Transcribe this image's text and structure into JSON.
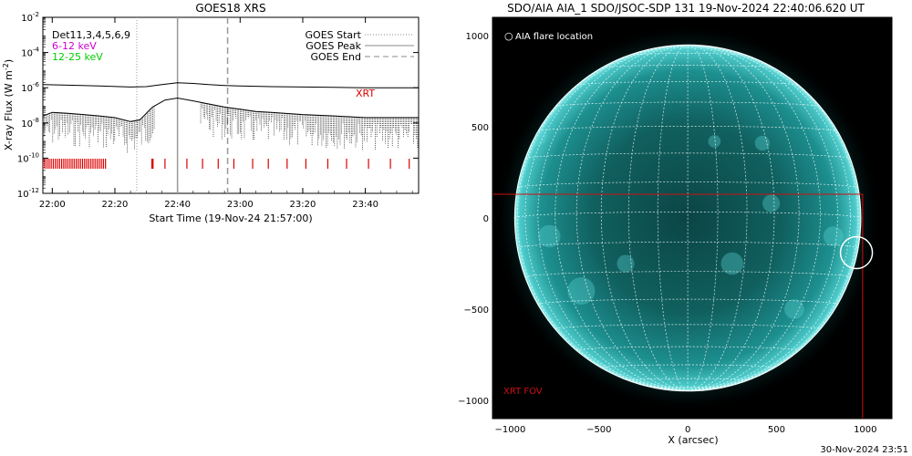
{
  "footer_timestamp": "30-Nov-2024 23:51",
  "chart_data": [
    {
      "type": "line",
      "title": "GOES18 XRS",
      "xlabel": "Start Time (19-Nov-24 21:57:00)",
      "ylabel": "X-ray Flux (W m",
      "ylabel_unit_exponent": "-2",
      "ylabel_close": ")",
      "y_scale": "log",
      "ylim": [
        1e-12,
        0.01
      ],
      "y_ticks": [
        {
          "value": 0.01,
          "base": "10",
          "exp": "-2"
        },
        {
          "value": 0.0001,
          "base": "10",
          "exp": "-4"
        },
        {
          "value": 1e-06,
          "base": "10",
          "exp": "-6"
        },
        {
          "value": 1e-08,
          "base": "10",
          "exp": "-8"
        },
        {
          "value": 1e-10,
          "base": "10",
          "exp": "-10"
        },
        {
          "value": 1e-12,
          "base": "10",
          "exp": "-12"
        }
      ],
      "xlim": [
        "21:57",
        "23:57"
      ],
      "x_ticks": [
        "22:00",
        "22:20",
        "22:40",
        "23:00",
        "23:20",
        "23:40"
      ],
      "legend_left": [
        {
          "text": "Det11,3,4,5,6,9",
          "color": "#000000"
        },
        {
          "text": "6-12 keV",
          "color": "#cc00cc"
        },
        {
          "text": "12-25 keV",
          "color": "#00cc00"
        }
      ],
      "legend_right": [
        {
          "text": "GOES Start",
          "style": "dotted"
        },
        {
          "text": "GOES Peak",
          "style": "solid"
        },
        {
          "text": "GOES End",
          "style": "dashed"
        }
      ],
      "event_lines": {
        "start": "22:27",
        "peak": "22:40",
        "end": "22:56"
      },
      "xrt_label": "XRT",
      "colors": {
        "xrt": "#dd0000",
        "axes": "#000000",
        "event_start": "#999999",
        "event_peak": "#999999",
        "event_end": "#999999"
      },
      "series": [
        {
          "key": "long",
          "x": [
            "21:57",
            "22:05",
            "22:15",
            "22:25",
            "22:30",
            "22:35",
            "22:40",
            "22:45",
            "22:50",
            "22:55",
            "23:00",
            "23:10",
            "23:20",
            "23:30",
            "23:40",
            "23:50",
            "23:57"
          ],
          "values": [
            1.5e-06,
            1.4e-06,
            1.25e-06,
            1.1e-06,
            1.15e-06,
            1.5e-06,
            1.9e-06,
            1.75e-06,
            1.5e-06,
            1.35e-06,
            1.25e-06,
            1.15e-06,
            1.1e-06,
            1.05e-06,
            1e-06,
            1e-06,
            1e-06
          ]
        },
        {
          "key": "short",
          "x": [
            "21:57",
            "22:00",
            "22:05",
            "22:10",
            "22:15",
            "22:20",
            "22:25",
            "22:28",
            "22:32",
            "22:36",
            "22:40",
            "22:45",
            "22:50",
            "22:55",
            "23:00",
            "23:05",
            "23:10",
            "23:20",
            "23:30",
            "23:40",
            "23:50",
            "23:57"
          ],
          "values": [
            2.5e-08,
            4e-08,
            3.5e-08,
            3e-08,
            2.5e-08,
            2e-08,
            1.2e-08,
            1.5e-08,
            8e-08,
            2e-07,
            2.6e-07,
            1.8e-07,
            1.2e-07,
            8e-08,
            6e-08,
            4.5e-08,
            4e-08,
            3e-08,
            2.5e-08,
            2e-08,
            2e-08,
            2e-08
          ]
        }
      ],
      "xrt_obs_dense": {
        "from": "21:57",
        "to": "22:17",
        "count": 31
      },
      "xrt_obs_sparse": [
        "22:32",
        "22:36",
        "22:43",
        "22:48",
        "22:53",
        "22:58",
        "23:04",
        "23:09",
        "23:15",
        "23:21",
        "23:28",
        "23:34",
        "23:41",
        "23:48",
        "23:54"
      ]
    },
    {
      "type": "image",
      "title": "SDO/AIA AIA_1 SDO/JSOC-SDP 131 19-Nov-2024 22:40:06.620 UT",
      "xlabel": "X (arcsec)",
      "xlim": [
        -1100,
        1150
      ],
      "ylim": [
        -1100,
        1100
      ],
      "x_ticks": [
        -1000,
        -500,
        0,
        500,
        1000
      ],
      "y_ticks": [
        -1000,
        -500,
        0,
        500,
        1000
      ],
      "solar_radius_arcsec": 975,
      "legend": {
        "symbol": "○",
        "text": "AIA flare location"
      },
      "flare_location": {
        "x": 950,
        "y": -190,
        "radius": 90
      },
      "xrt_fov": {
        "label": "XRT FOV",
        "x0": -1110,
        "x1": 985,
        "y0": -1100,
        "y1": 130
      },
      "colors": {
        "disk": "#1aa3a3",
        "disk_center": "#0f5c5c",
        "limb": "#8fe8e8",
        "background": "#000000",
        "grid": "#ffffff",
        "fov": "#cc1111",
        "axes": "#000000"
      }
    }
  ]
}
